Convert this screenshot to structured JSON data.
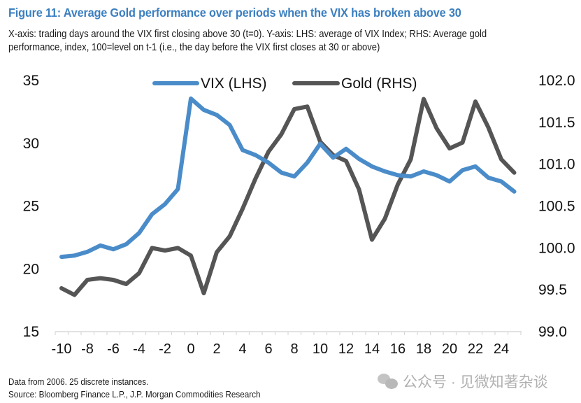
{
  "figure": {
    "title": "Figure 11: Average Gold performance over periods when the VIX has broken above 30",
    "subtitle_line1": "X-axis: trading days around the VIX first closing above 30 (t=0). Y-axis: LHS: average of VIX Index; RHS: Average gold",
    "subtitle_line2": "performance, index, 100=level on t-1 (i.e., the day before the VIX first closes at 30 or above)",
    "footer_note": "Data from 2006. 25 discrete instances.",
    "footer_source": "Source: Bloomberg Finance L.P., J.P. Morgan Commodities Research",
    "watermark_text": "公众号 · 见微知著杂谈",
    "watermark_icon": "wechat-icon"
  },
  "colors": {
    "title": "#3b7fc0",
    "vix": "#4a8cc9",
    "gold": "#555555",
    "axis": "#d9d9d9"
  },
  "chart_data": {
    "type": "line",
    "title": "Figure 11: Average Gold performance over periods when the VIX has broken above 30",
    "xlabel": "trading days around the VIX first closing above 30 (t=0)",
    "ylabel_left": "average of VIX Index",
    "ylabel_right": "Average gold performance, index, 100=level on t-1",
    "x": [
      -10,
      -9,
      -8,
      -7,
      -6,
      -5,
      -4,
      -3,
      -2,
      -1,
      0,
      1,
      2,
      3,
      4,
      5,
      6,
      7,
      8,
      9,
      10,
      11,
      12,
      13,
      14,
      15,
      16,
      17,
      18,
      19,
      20,
      21,
      22,
      23,
      24,
      25
    ],
    "x_tick_labels": [
      "-10",
      "-8",
      "-6",
      "-4",
      "-2",
      "0",
      "2",
      "4",
      "6",
      "8",
      "10",
      "12",
      "14",
      "16",
      "18",
      "20",
      "22",
      "24"
    ],
    "x_tick_values": [
      -10,
      -8,
      -6,
      -4,
      -2,
      0,
      2,
      4,
      6,
      8,
      10,
      12,
      14,
      16,
      18,
      20,
      22,
      24
    ],
    "ylim_left": [
      15,
      35
    ],
    "y_ticks_left": [
      "15",
      "20",
      "25",
      "30",
      "35"
    ],
    "y_tick_values_left": [
      15,
      20,
      25,
      30,
      35
    ],
    "ylim_right": [
      99.0,
      102.0
    ],
    "y_ticks_right": [
      "99.0",
      "99.5",
      "100.0",
      "100.5",
      "101.0",
      "101.5",
      "102.0"
    ],
    "y_tick_values_right": [
      99.0,
      99.5,
      100.0,
      100.5,
      101.0,
      101.5,
      102.0
    ],
    "grid": false,
    "legend_position": "top-center",
    "series": [
      {
        "name": "VIX (LHS)",
        "axis": "left",
        "values": [
          20.9,
          21.0,
          21.3,
          21.8,
          21.5,
          21.9,
          22.8,
          24.3,
          25.1,
          26.3,
          33.5,
          32.6,
          32.2,
          31.4,
          29.4,
          29.0,
          28.4,
          27.6,
          27.3,
          28.4,
          29.9,
          28.8,
          29.5,
          28.7,
          28.1,
          27.7,
          27.4,
          27.3,
          27.7,
          27.4,
          26.9,
          27.8,
          28.1,
          27.2,
          26.9,
          26.1
        ]
      },
      {
        "name": "Gold (RHS)",
        "axis": "right",
        "values": [
          99.51,
          99.43,
          99.61,
          99.63,
          99.61,
          99.56,
          99.69,
          99.99,
          99.96,
          99.99,
          99.9,
          99.45,
          99.94,
          100.13,
          100.46,
          100.82,
          101.14,
          101.35,
          101.65,
          101.68,
          101.26,
          101.1,
          101.03,
          100.69,
          100.09,
          100.34,
          100.75,
          101.05,
          101.77,
          101.42,
          101.18,
          101.25,
          101.74,
          101.43,
          101.05,
          100.89
        ]
      }
    ]
  }
}
